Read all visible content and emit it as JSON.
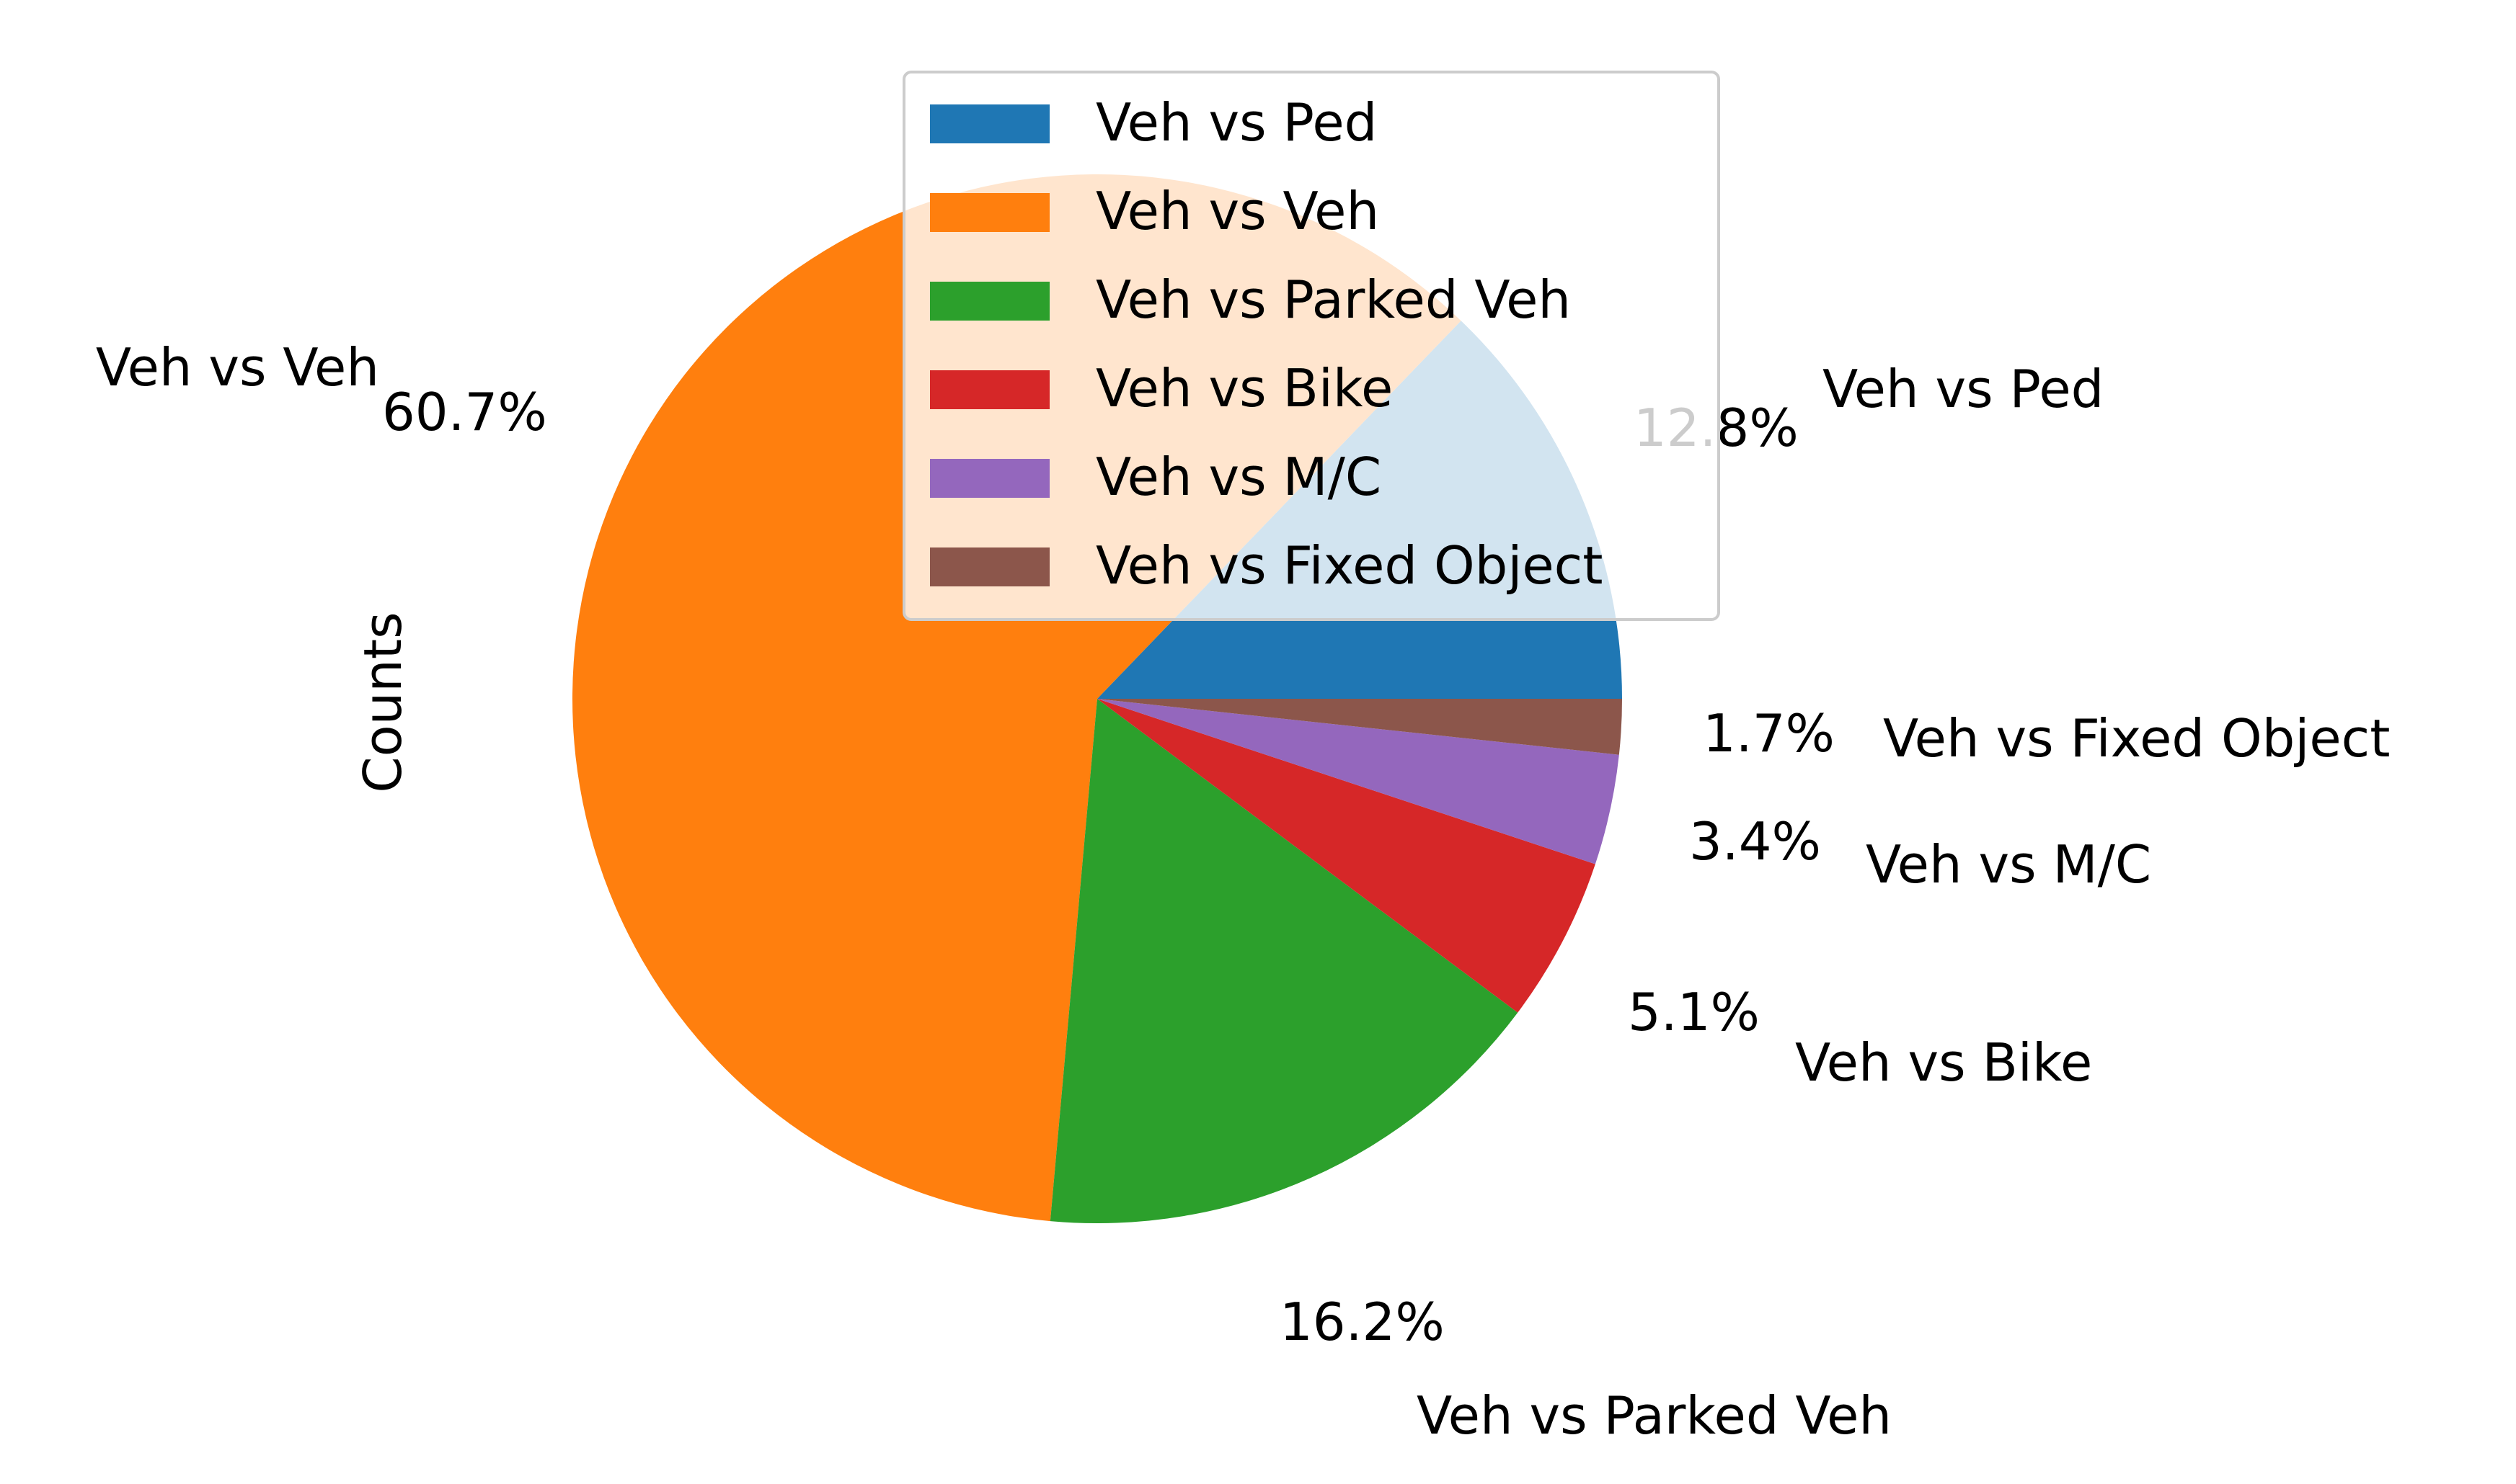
{
  "chart_data": {
    "type": "pie",
    "ylabel": "Counts",
    "slices": [
      {
        "label": "Veh vs Ped",
        "percent": 12.8,
        "pct_text": "12.8%",
        "color": "#1f77b4"
      },
      {
        "label": "Veh vs Veh",
        "percent": 60.7,
        "pct_text": "60.7%",
        "color": "#ff7f0e"
      },
      {
        "label": "Veh vs Parked Veh",
        "percent": 16.2,
        "pct_text": "16.2%",
        "color": "#2ca02c"
      },
      {
        "label": "Veh vs Bike",
        "percent": 5.1,
        "pct_text": "5.1%",
        "color": "#d62728"
      },
      {
        "label": "Veh vs M/C",
        "percent": 3.4,
        "pct_text": "3.4%",
        "color": "#9467bd"
      },
      {
        "label": "Veh vs Fixed Object",
        "percent": 1.7,
        "pct_text": "1.7%",
        "color": "#8c564b"
      }
    ],
    "legend": {
      "placement": "top-center",
      "entries": [
        "Veh vs Ped",
        "Veh vs Veh",
        "Veh vs Parked Veh",
        "Veh vs Bike",
        "Veh vs M/C",
        "Veh vs Fixed Object"
      ]
    }
  }
}
